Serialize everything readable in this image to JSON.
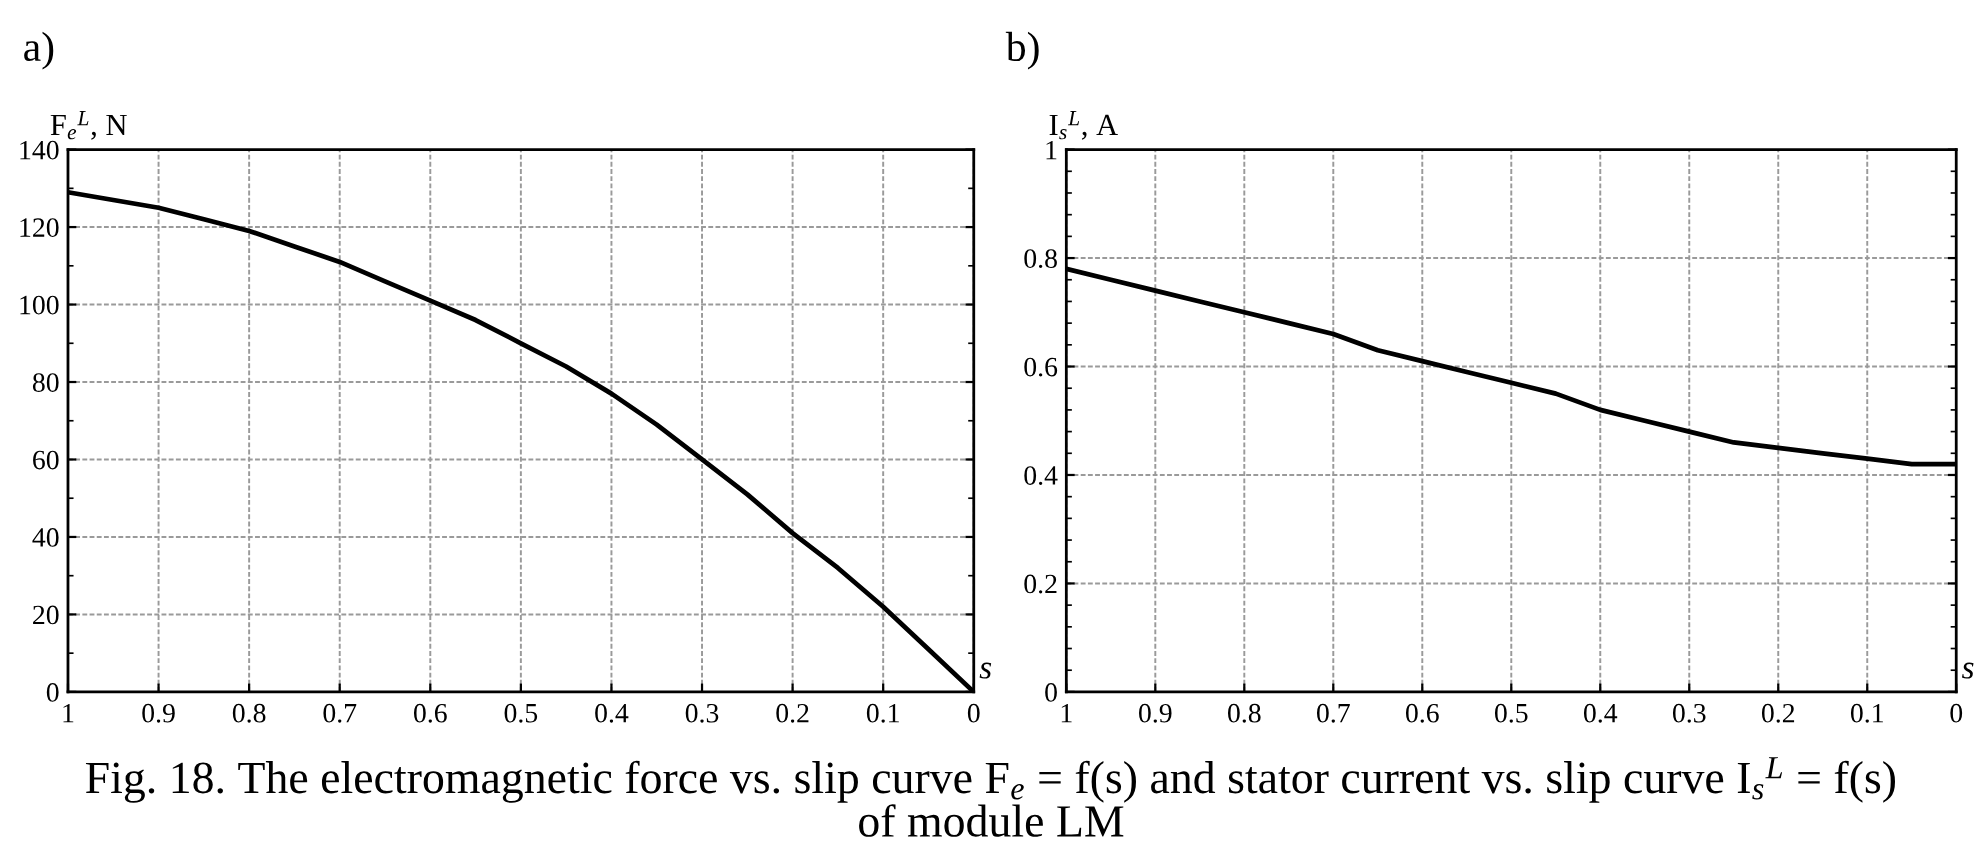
{
  "chart_data": [
    {
      "type": "line",
      "title": "a)",
      "xlabel": "s",
      "ylabel": "F$_{e}$$^{L}$, N",
      "x": [
        1,
        0.95,
        0.9,
        0.85,
        0.8,
        0.75,
        0.7,
        0.65,
        0.6,
        0.55,
        0.5,
        0.45,
        0.4,
        0.35,
        0.3,
        0.25,
        0.2,
        0.15,
        0.1,
        0.05,
        0
      ],
      "values": [
        129,
        127,
        125,
        122,
        119,
        115,
        111,
        106,
        101,
        96,
        90,
        84,
        77,
        69,
        60,
        51,
        41,
        32,
        22,
        11,
        0
      ],
      "color": "#000000",
      "xlim": [
        1,
        0
      ],
      "ylim": [
        0,
        140
      ],
      "xticks": [
        1,
        0.9,
        0.8,
        0.7,
        0.6,
        0.5,
        0.4,
        0.3,
        0.2,
        0.1,
        0
      ],
      "yticks": [
        0,
        20,
        40,
        60,
        80,
        100,
        120,
        140
      ],
      "grid": true,
      "annotations": [
        "Fig. 18. The electromagnetic force vs. slip curve F$_{e}$ = f(s) and stator current vs. slip curve I$_{s}$$^{L}$ = f(s) of module LM"
      ]
    },
    {
      "type": "line",
      "title": "b)",
      "xlabel": "s",
      "ylabel": "I$_{s}$$^{L}$, A",
      "x": [
        1,
        0.95,
        0.9,
        0.85,
        0.8,
        0.75,
        0.7,
        0.65,
        0.6,
        0.55,
        0.5,
        0.45,
        0.4,
        0.35,
        0.3,
        0.25,
        0.2,
        0.15,
        0.1,
        0.05,
        0
      ],
      "values": [
        0.78,
        0.76,
        0.74,
        0.72,
        0.7,
        0.68,
        0.66,
        0.63,
        0.61,
        0.59,
        0.57,
        0.55,
        0.52,
        0.5,
        0.48,
        0.46,
        0.45,
        0.44,
        0.43,
        0.42,
        0.42
      ],
      "color": "#000000",
      "xlim": [
        1,
        0
      ],
      "ylim": [
        0,
        1
      ],
      "xticks": [
        1,
        0.9,
        0.8,
        0.7,
        0.6,
        0.5,
        0.4,
        0.3,
        0.2,
        0.1,
        0
      ],
      "yticks": [
        0,
        0.2,
        0.4,
        0.6,
        0.8,
        1
      ],
      "grid": true
    }
  ]
}
